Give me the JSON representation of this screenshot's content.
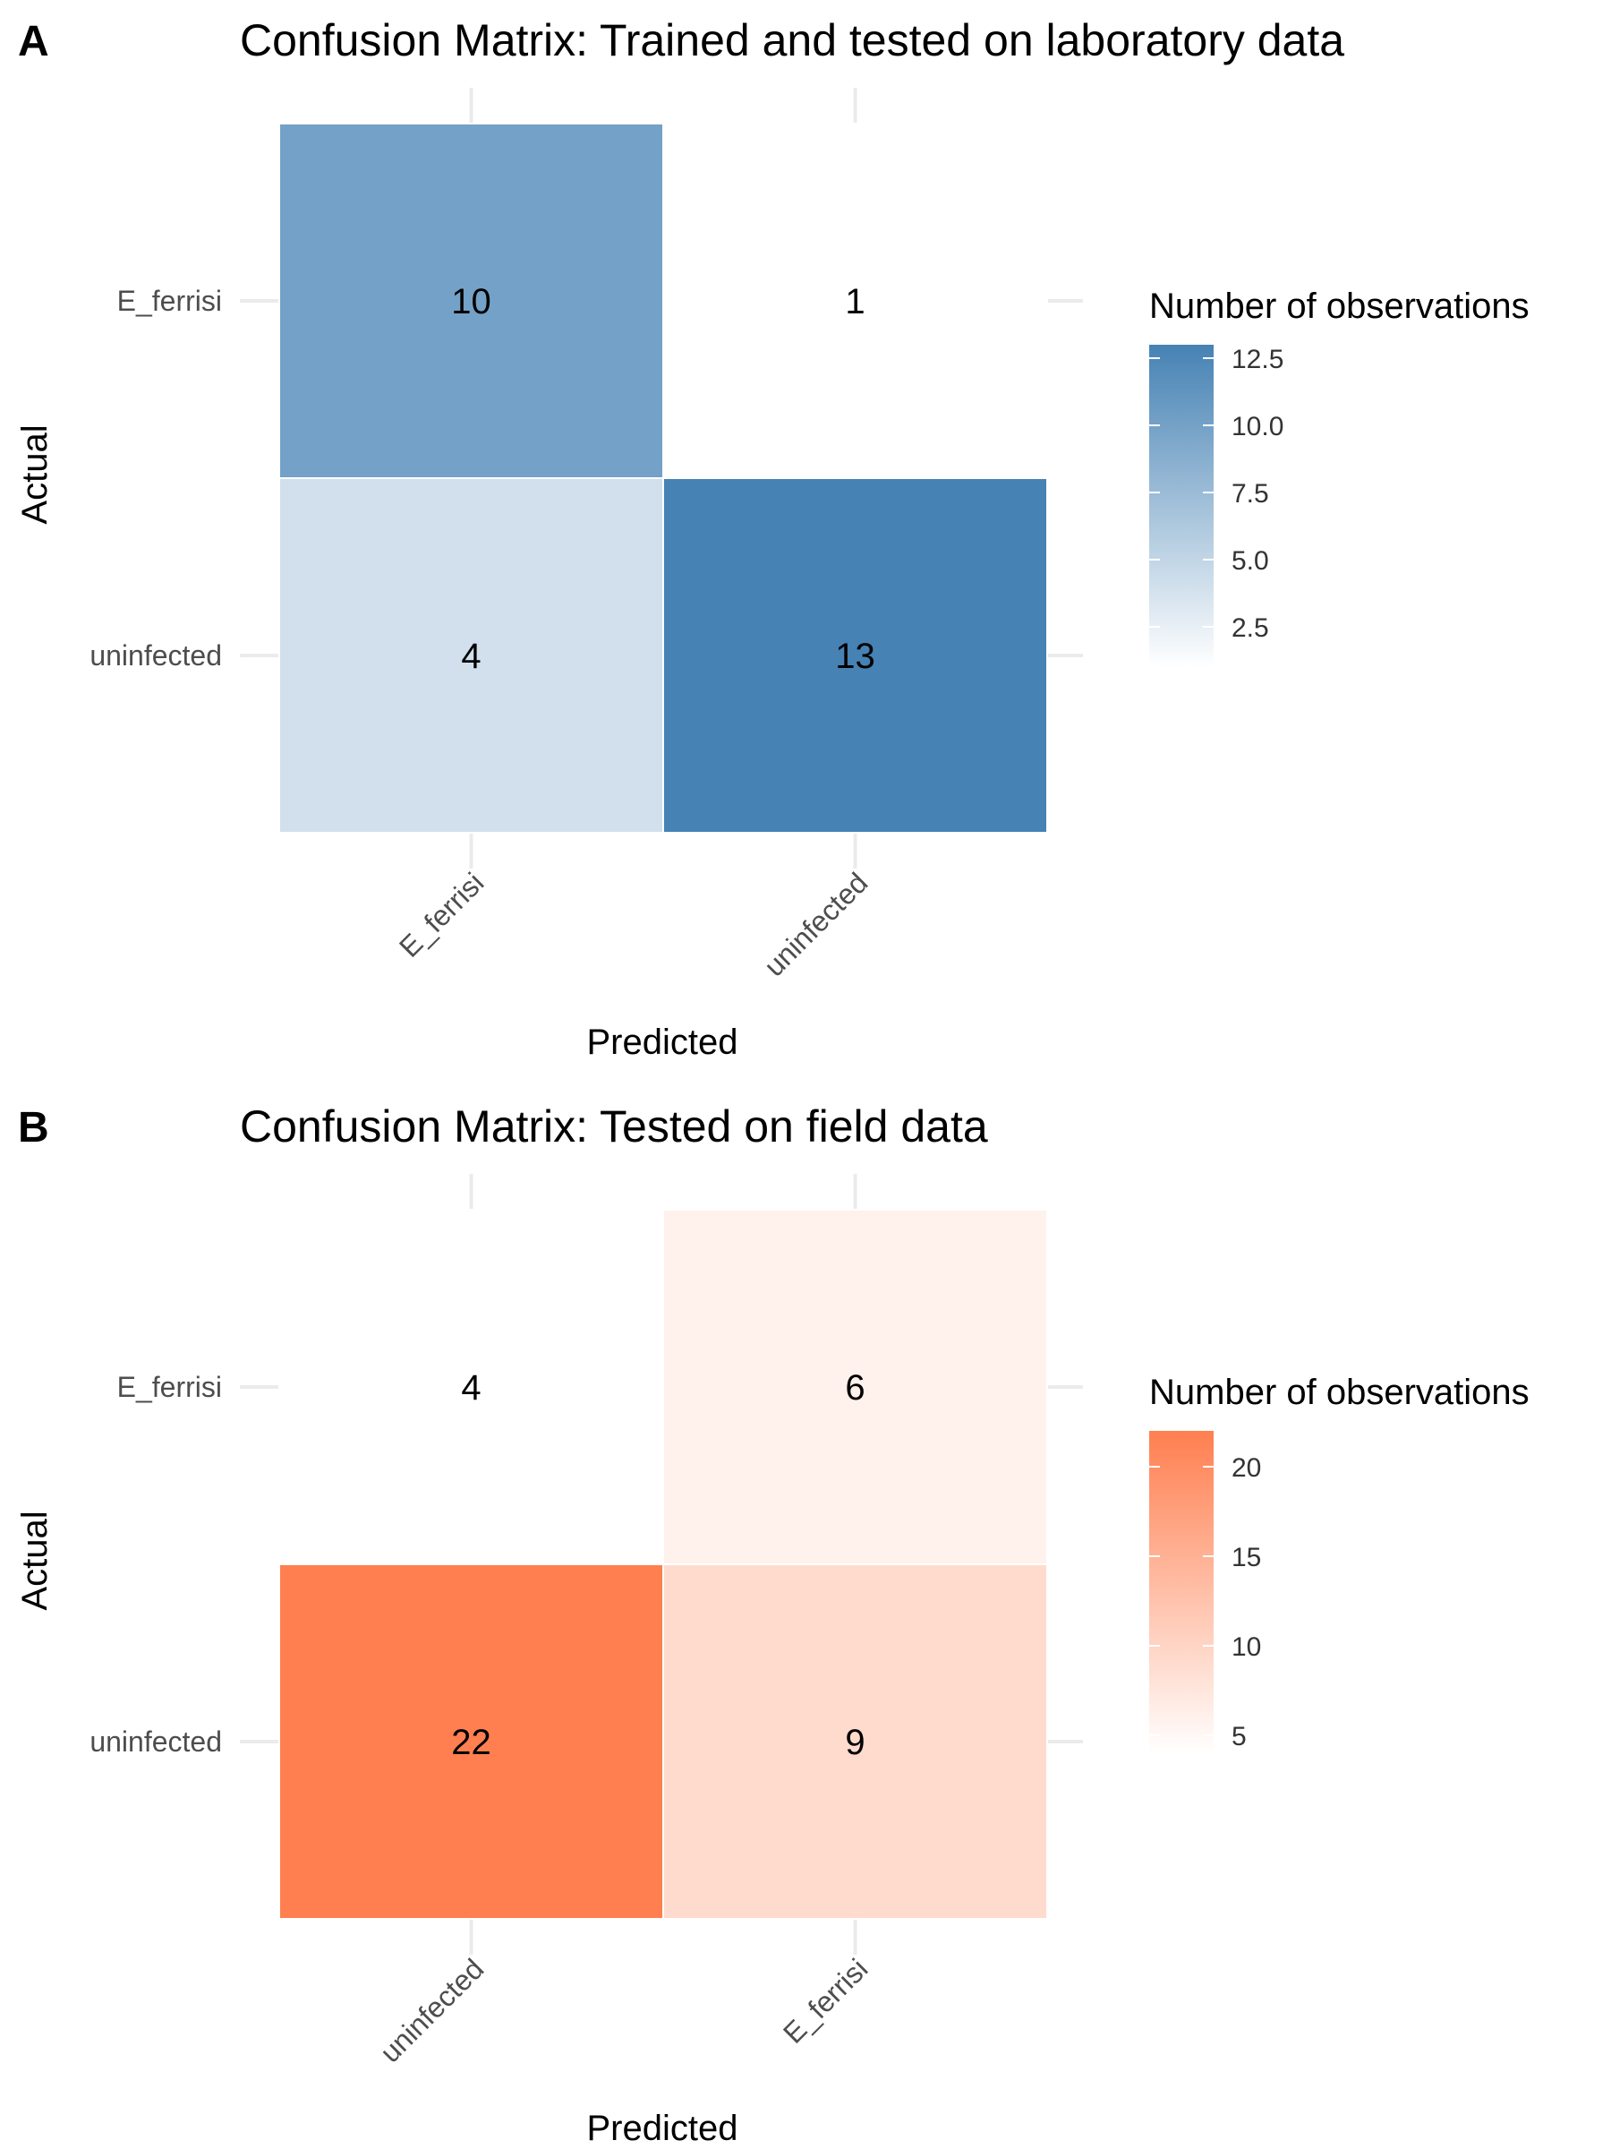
{
  "chart_data": [
    {
      "panel": "A",
      "type": "heatmap",
      "title": "Confusion Matrix: Trained and tested on laboratory data",
      "xlabel": "Predicted",
      "ylabel": "Actual",
      "x_categories": [
        "E_ferrisi",
        "uninfected"
      ],
      "y_categories": [
        "E_ferrisi",
        "uninfected"
      ],
      "cells": [
        {
          "x": "E_ferrisi",
          "y": "E_ferrisi",
          "value": 10
        },
        {
          "x": "uninfected",
          "y": "E_ferrisi",
          "value": 1
        },
        {
          "x": "E_ferrisi",
          "y": "uninfected",
          "value": 4
        },
        {
          "x": "uninfected",
          "y": "uninfected",
          "value": 13
        }
      ],
      "legend": {
        "title": "Number of observations",
        "placement": "right",
        "range": [
          1,
          13
        ],
        "ticks": [
          {
            "value": 12.5,
            "label": "12.5"
          },
          {
            "value": 10,
            "label": "10.0"
          },
          {
            "value": 7.5,
            "label": "7.5"
          },
          {
            "value": 5,
            "label": "5.0"
          },
          {
            "value": 2.5,
            "label": "2.5"
          }
        ],
        "color_low": "#ffffff",
        "color_high": "#4682b4"
      },
      "grid": true
    },
    {
      "panel": "B",
      "type": "heatmap",
      "title": "Confusion Matrix: Tested on field data",
      "xlabel": "Predicted",
      "ylabel": "Actual",
      "x_categories": [
        "uninfected",
        "E_ferrisi"
      ],
      "y_categories": [
        "E_ferrisi",
        "uninfected"
      ],
      "cells": [
        {
          "x": "uninfected",
          "y": "E_ferrisi",
          "value": 4
        },
        {
          "x": "E_ferrisi",
          "y": "E_ferrisi",
          "value": 6
        },
        {
          "x": "uninfected",
          "y": "uninfected",
          "value": 22
        },
        {
          "x": "E_ferrisi",
          "y": "uninfected",
          "value": 9
        }
      ],
      "legend": {
        "title": "Number of observations",
        "placement": "right",
        "range": [
          4,
          22
        ],
        "ticks": [
          {
            "value": 20,
            "label": "20"
          },
          {
            "value": 15,
            "label": "15"
          },
          {
            "value": 10,
            "label": "10"
          },
          {
            "value": 5,
            "label": "5"
          }
        ],
        "color_low": "#ffffff",
        "color_high": "#ff7f50"
      },
      "grid": true
    }
  ]
}
